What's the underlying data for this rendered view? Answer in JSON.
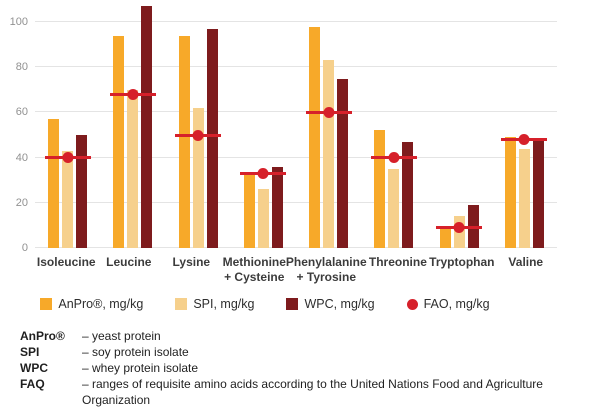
{
  "chart_data": {
    "type": "bar",
    "title": "",
    "xlabel": "",
    "ylabel": "",
    "categories": [
      "Isoleucine",
      "Leucine",
      "Lysine",
      "Methionine + Cysteine",
      "Phenylalanine + Tyrosine",
      "Threonine",
      "Tryptophan",
      "Valine"
    ],
    "series": [
      {
        "name": "AnPro®, mg/kg",
        "type": "bar",
        "color": "#F7A929",
        "values": [
          57,
          94,
          94,
          33,
          98,
          52,
          9,
          49
        ]
      },
      {
        "name": "SPI, mg/kg",
        "type": "bar",
        "color": "#F6D08C",
        "values": [
          43,
          70,
          62,
          26,
          83,
          35,
          14,
          44
        ]
      },
      {
        "name": "WPC, mg/kg",
        "type": "bar",
        "color": "#7E1B1D",
        "values": [
          50,
          107,
          97,
          36,
          75,
          47,
          19,
          48
        ]
      },
      {
        "name": "FAO, mg/kg",
        "type": "line-marker",
        "color": "#D6202A",
        "values": [
          40,
          68,
          50,
          33,
          60,
          40,
          9,
          48
        ]
      }
    ],
    "ylim": [
      0,
      110
    ],
    "yticks": [
      0,
      20,
      40,
      60,
      80,
      100
    ],
    "grid": "horizontal",
    "legend_position": "bottom"
  },
  "footnotes": [
    {
      "term": "AnPro®",
      "desc": "– yeast protein"
    },
    {
      "term": "SPI",
      "desc": "– soy protein isolate"
    },
    {
      "term": "WPC",
      "desc": "– whey protein isolate"
    },
    {
      "term": "FAQ",
      "desc": "– ranges of requisite amino acids according to the United Nations Food and Agriculture Organization"
    }
  ]
}
